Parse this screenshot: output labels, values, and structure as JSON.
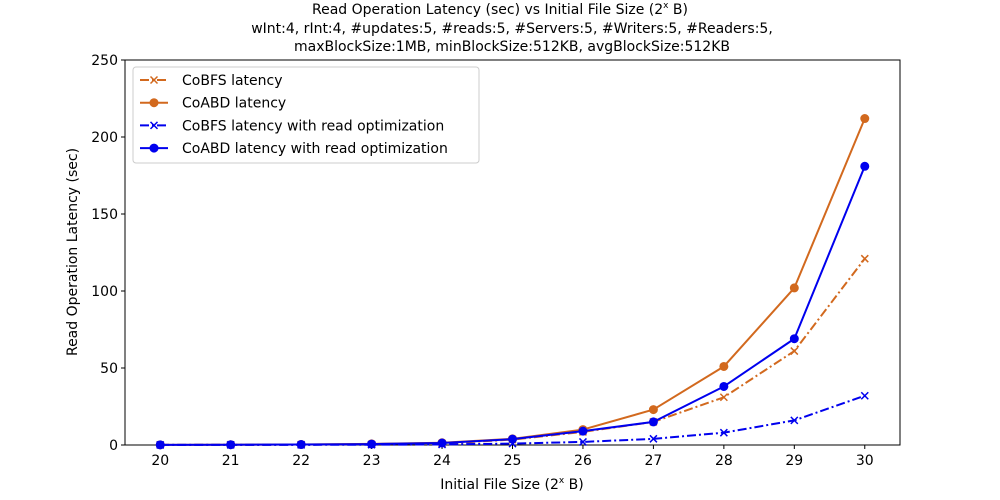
{
  "chart_data": {
    "type": "line",
    "title_lines": [
      "Read Operation Latency (sec) vs Initial File Size (2",
      "wInt:4, rInt:4, #updates:5, #reads:5, #Servers:5, #Writers:5, #Readers:5,",
      "maxBlockSize:1MB, minBlockSize:512KB, avgBlockSize:512KB"
    ],
    "title_sup": "x",
    "title_suffix": " B)",
    "xlabel": "Initial File Size (2",
    "xlabel_sup": "x",
    "xlabel_suffix": " B)",
    "ylabel": "Read Operation Latency (sec)",
    "x": [
      20,
      21,
      22,
      23,
      24,
      25,
      26,
      27,
      28,
      29,
      30
    ],
    "xlim": [
      19.5,
      30.5
    ],
    "ylim": [
      0,
      250
    ],
    "yticks": [
      0,
      50,
      100,
      150,
      200,
      250
    ],
    "grid": false,
    "legend_position": "top-left",
    "series": [
      {
        "name": "CoBFS latency",
        "color": "#d2691e",
        "marker": "x",
        "line_style": "dash-dot",
        "values": [
          0.1,
          0.15,
          0.25,
          0.4,
          0.9,
          3.5,
          8.5,
          15.0,
          31.0,
          61.0,
          121.0
        ]
      },
      {
        "name": "CoABD latency",
        "color": "#d2691e",
        "marker": "circle",
        "line_style": "solid",
        "values": [
          0.1,
          0.2,
          0.35,
          0.7,
          1.5,
          4.0,
          10.0,
          23.0,
          51.0,
          102.0,
          212.0
        ]
      },
      {
        "name": "CoBFS latency with read optimization",
        "color": "#0000ee",
        "marker": "x",
        "line_style": "dash-dot",
        "values": [
          0.05,
          0.08,
          0.1,
          0.2,
          0.35,
          0.9,
          2.0,
          4.0,
          8.0,
          16.0,
          32.0
        ]
      },
      {
        "name": "CoABD latency with read optimization",
        "color": "#0000ee",
        "marker": "circle",
        "line_style": "solid",
        "values": [
          0.1,
          0.2,
          0.3,
          0.6,
          1.3,
          3.8,
          9.0,
          15.0,
          38.0,
          69.0,
          181.0
        ]
      }
    ]
  }
}
